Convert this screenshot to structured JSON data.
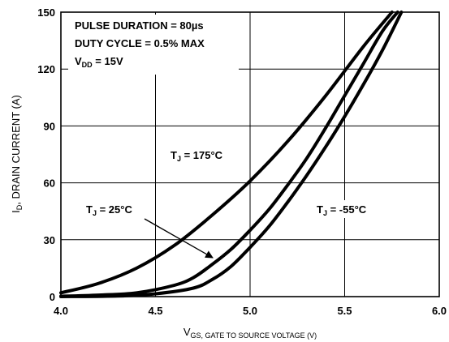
{
  "chart_data": {
    "type": "line",
    "xlabel": "GS, GATE TO SOURCE VOLTAGE (V)",
    "xlabel_prefix": "V",
    "ylabel_prefix": "I",
    "ylabel_sub": "D",
    "ylabel": ", DRAIN CURRENT (A)",
    "xlim": [
      4.0,
      6.0
    ],
    "ylim": [
      0,
      150
    ],
    "x_ticks": [
      "4.0",
      "4.5",
      "5.0",
      "5.5",
      "6.0"
    ],
    "y_ticks": [
      "0",
      "30",
      "60",
      "90",
      "120",
      "150"
    ],
    "grid": true,
    "conditions": {
      "pulse": "PULSE DURATION = 80µs",
      "duty": "DUTY CYCLE = 0.5% MAX",
      "vdd_prefix": "V",
      "vdd_sub": "DD",
      "vdd_value": " = 15V"
    },
    "series": [
      {
        "label_prefix": "T",
        "label_sub": "J",
        "label_value": " = 175°C",
        "x": [
          4.0,
          4.2,
          4.4,
          4.6,
          4.8,
          5.0,
          5.2,
          5.4,
          5.6,
          5.75
        ],
        "y": [
          2,
          7,
          15,
          27,
          43,
          61,
          82,
          106,
          132,
          150
        ]
      },
      {
        "label_prefix": "T",
        "label_sub": "J",
        "label_value": " = 25°C",
        "x": [
          4.0,
          4.2,
          4.4,
          4.6,
          4.7,
          4.8,
          4.9,
          5.0,
          5.1,
          5.2,
          5.3,
          5.4,
          5.5,
          5.6,
          5.7,
          5.78
        ],
        "y": [
          0.2,
          0.8,
          2,
          6,
          10,
          17,
          25,
          35,
          46,
          59,
          73,
          89,
          106,
          123,
          140,
          150
        ]
      },
      {
        "label_prefix": "T",
        "label_sub": "J",
        "label_value": " = -55°C",
        "x": [
          4.0,
          4.3,
          4.5,
          4.7,
          4.8,
          4.9,
          5.0,
          5.1,
          5.2,
          5.3,
          5.4,
          5.5,
          5.6,
          5.7,
          5.8
        ],
        "y": [
          0,
          0.3,
          1.5,
          4.5,
          9,
          16,
          26,
          37,
          50,
          64,
          79,
          95,
          112,
          130,
          150
        ]
      }
    ]
  }
}
